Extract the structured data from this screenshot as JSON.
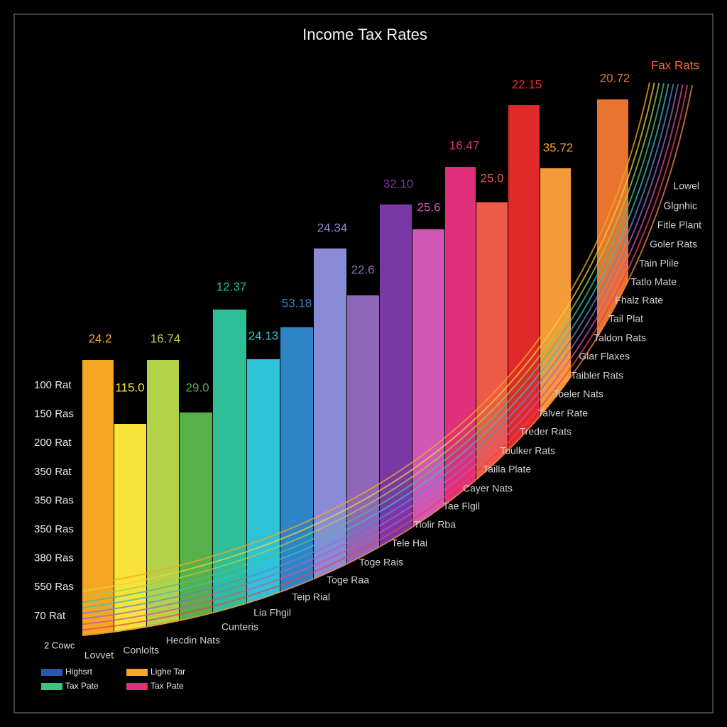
{
  "title": "Income Tax Rates",
  "corner_label": "Fax Rats",
  "bars": [
    {
      "label": "24.2",
      "color": "#f5a623"
    },
    {
      "label": "115.0",
      "color": "#f7e33a"
    },
    {
      "label": "16.74",
      "color": "#b4d14a"
    },
    {
      "label": "29.0",
      "color": "#57b04a"
    },
    {
      "label": "12.37",
      "color": "#2fbf98"
    },
    {
      "label": "24.13",
      "color": "#2ec2d6"
    },
    {
      "label": "53.18",
      "color": "#2f84c6"
    },
    {
      "label": "24.34",
      "color": "#8a8bd6"
    },
    {
      "label": "22.6",
      "color": "#8f66b8"
    },
    {
      "label": "32.10",
      "color": "#7a38a6"
    },
    {
      "label": "25.6",
      "color": "#d057b6"
    },
    {
      "label": "16.47",
      "color": "#e0307a"
    },
    {
      "label": "25.0",
      "color": "#ee5a48"
    },
    {
      "label": "22.15",
      "color": "#e02a2a"
    },
    {
      "label": "35.72",
      "color": "#f59a3a"
    },
    {
      "label": "20.72",
      "color": "#e8742e"
    }
  ],
  "left_labels": [
    "100 Rat",
    "150 Ras",
    "200 Rat",
    "350 Rat",
    "350 Ras",
    "350 Ras",
    "380 Ras",
    "550 Ras",
    "70 Rat"
  ],
  "footer_label": "2 Cowc",
  "right_labels": [
    "Lowel",
    "Glgnhic",
    "Fitle Plant",
    "Goler Rats",
    "Tain Plile",
    "Tatlo Mate",
    "Fhalz Rate",
    "Tail Plat",
    "Taldon Rats",
    "Glar Flaxes",
    "Taibler Rats",
    "Toeler Nats",
    "Talver Rate",
    "Treder Rats",
    "Toulker Rats",
    "Tailla Plate",
    "Cayer Nats",
    "Tae Flgil",
    "Tiolir Rba",
    "Tele Hai",
    "Toge Rais",
    "Toge Raa",
    "Teip Rial",
    "Lia Fhgil",
    "Cunteris",
    "Hecdin Nats",
    "Conlolts",
    "Lovvet"
  ],
  "legend": [
    {
      "label": "Highsrt",
      "color": "#2a58b0"
    },
    {
      "label": "Lighe Tar",
      "color": "#f5a623"
    },
    {
      "label": "Tax Pate",
      "color": "#3cc47a"
    },
    {
      "label": "Tax Pate",
      "color": "#e0307a"
    }
  ]
}
